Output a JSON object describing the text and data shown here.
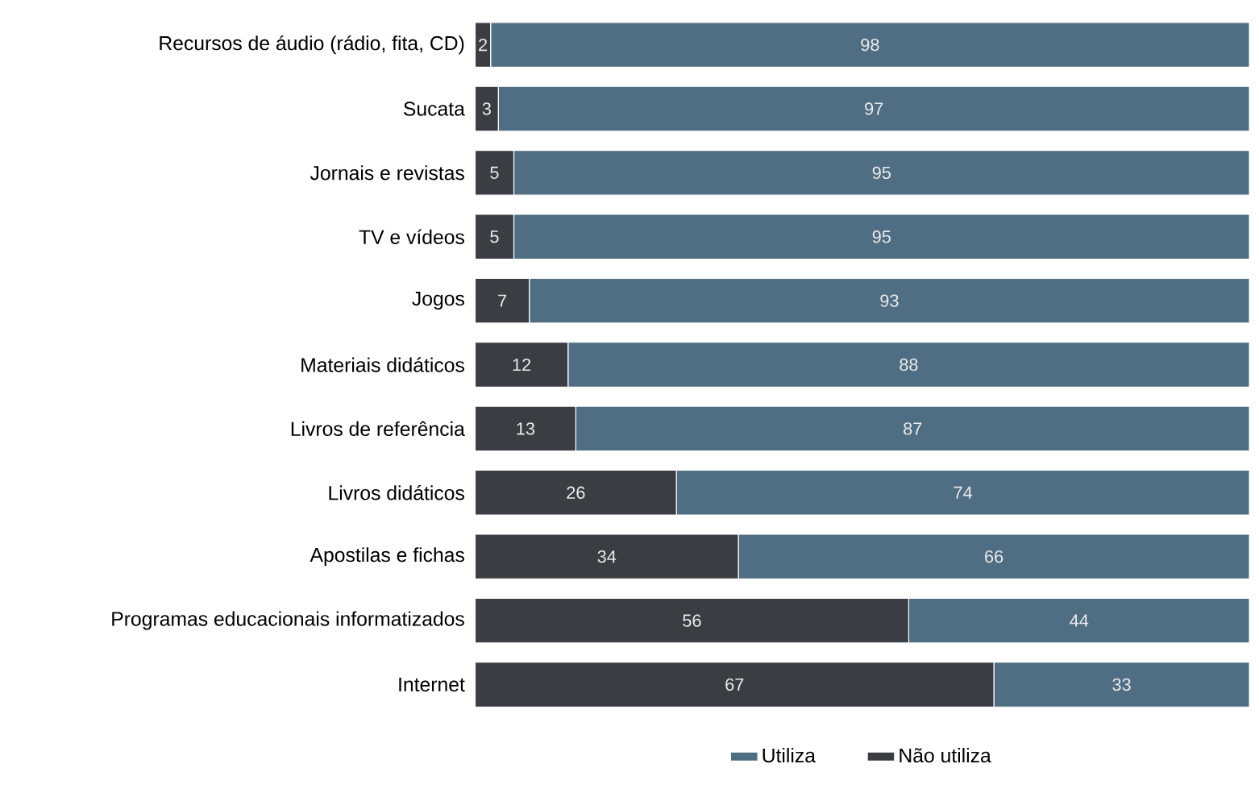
{
  "chart_data": {
    "type": "bar",
    "orientation": "horizontal",
    "stacked": true,
    "data_labels": true,
    "legend": "bottom",
    "categories": [
      "Recursos de áudio (rádio, fita, CD)",
      "Sucata",
      "Jornais e revistas",
      "TV e vídeos",
      "Jogos",
      "Materiais didáticos",
      "Livros de referência",
      "Livros didáticos",
      "Apostilas e fichas",
      "Programas educacionais informatizados",
      "Internet"
    ],
    "series": [
      {
        "name": "Não utiliza",
        "color": "#3b3d42",
        "values": [
          2,
          3,
          5,
          5,
          7,
          12,
          13,
          26,
          34,
          56,
          67
        ]
      },
      {
        "name": "Utiliza",
        "color": "#4f6d83",
        "values": [
          98,
          97,
          95,
          95,
          93,
          88,
          87,
          74,
          66,
          44,
          33
        ]
      }
    ]
  }
}
